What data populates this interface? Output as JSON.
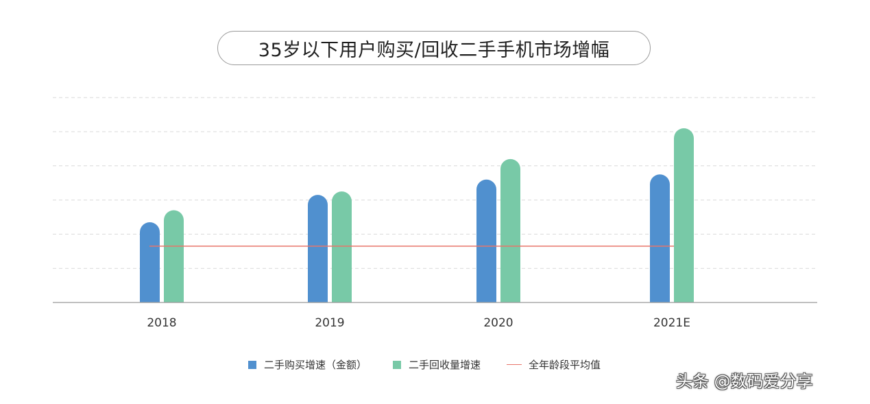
{
  "chart_data": {
    "type": "bar",
    "title": "35岁以下用户购买/回收二手手机市场增幅",
    "categories": [
      "2018",
      "2019",
      "2020",
      "2021E"
    ],
    "series": [
      {
        "name": "二手购买增速（金额）",
        "color": "#5090cf",
        "values": [
          2.35,
          3.15,
          3.6,
          3.75
        ]
      },
      {
        "name": "二手回收量增速",
        "color": "#78c9a7",
        "values": [
          2.7,
          3.25,
          4.2,
          5.1
        ]
      }
    ],
    "reference_line": {
      "name": "全年龄段平均值",
      "color": "#e8756a",
      "value": 1.65
    },
    "ylim": [
      0,
      6
    ],
    "grid": true,
    "legend": "bottom"
  },
  "watermark": "头条 @数码爱分享"
}
